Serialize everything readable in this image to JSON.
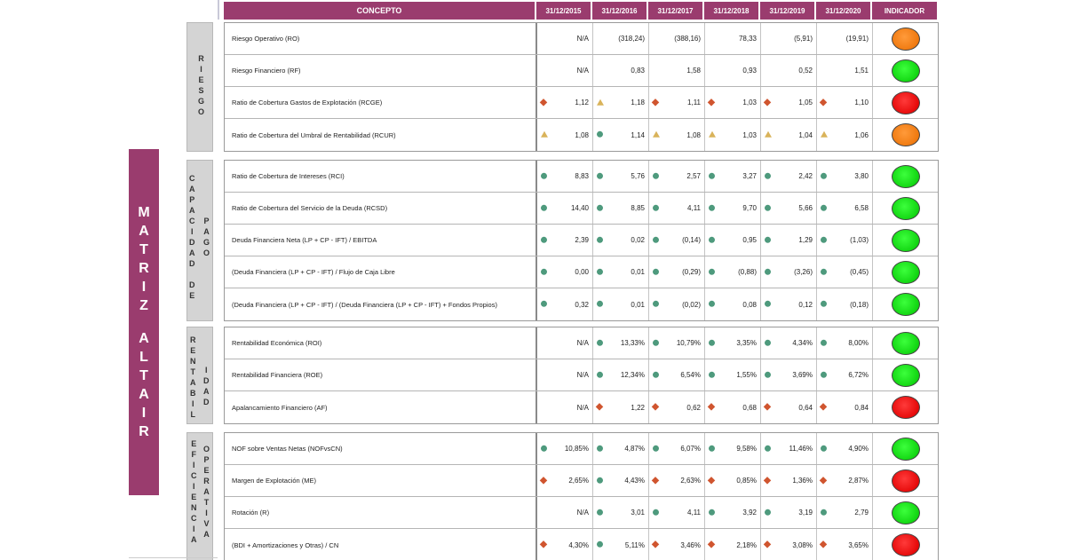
{
  "header": {
    "concept": "CONCEPTO",
    "dates": [
      "31/12/2015",
      "31/12/2016",
      "31/12/2017",
      "31/12/2018",
      "31/12/2019",
      "31/12/2020"
    ],
    "indicator": "INDICADOR"
  },
  "matrix_label": [
    "M",
    "A",
    "T",
    "R",
    "I",
    "Z",
    "",
    "A",
    "L",
    "T",
    "A",
    "I",
    "R"
  ],
  "sections": [
    {
      "label_cols": [
        [
          "R",
          "I",
          "E",
          "S",
          "G",
          "O"
        ]
      ],
      "rows": [
        {
          "concept": "Riesgo Operativo (RO)",
          "values": [
            "N/A",
            "(318,24)",
            "(388,16)",
            "78,33",
            "(5,91)",
            "(19,91)"
          ],
          "marks": [
            "",
            "",
            "",
            "",
            "",
            ""
          ],
          "indicator": "orange"
        },
        {
          "concept": "Riesgo Financiero (RF)",
          "values": [
            "N/A",
            "0,83",
            "1,58",
            "0,93",
            "0,52",
            "1,51"
          ],
          "marks": [
            "",
            "",
            "",
            "",
            "",
            ""
          ],
          "indicator": "green"
        },
        {
          "concept": "Ratio de Cobertura Gastos de Explotación (RCGE)",
          "values": [
            "1,12",
            "1,18",
            "1,11",
            "1,03",
            "1,05",
            "1,10"
          ],
          "marks": [
            "dia",
            "tri",
            "dia",
            "dia",
            "dia",
            "dia"
          ],
          "indicator": "red"
        },
        {
          "concept": "Ratio de Cobertura del Umbral de Rentabilidad (RCUR)",
          "values": [
            "1,08",
            "1,14",
            "1,08",
            "1,03",
            "1,04",
            "1,06"
          ],
          "marks": [
            "tri",
            "dot",
            "tri",
            "tri",
            "tri",
            "tri"
          ],
          "indicator": "orange"
        }
      ]
    },
    {
      "label_cols": [
        [
          "C",
          "A",
          "P",
          "A",
          "C",
          "I",
          "D",
          "A",
          "D",
          "",
          "D",
          "E"
        ],
        [
          "P",
          "A",
          "G",
          "O"
        ]
      ],
      "rows": [
        {
          "concept": "Ratio de Cobertura de Intereses (RCI)",
          "values": [
            "8,83",
            "5,76",
            "2,57",
            "3,27",
            "2,42",
            "3,80"
          ],
          "marks": [
            "dot",
            "dot",
            "dot",
            "dot",
            "dot",
            "dot"
          ],
          "indicator": "green"
        },
        {
          "concept": "Ratio de Cobertura del Servicio de la Deuda (RCSD)",
          "values": [
            "14,40",
            "8,85",
            "4,11",
            "9,70",
            "5,66",
            "6,58"
          ],
          "marks": [
            "dot",
            "dot",
            "dot",
            "dot",
            "dot",
            "dot"
          ],
          "indicator": "green"
        },
        {
          "concept": "Deuda Financiera Neta (LP + CP - IFT) / EBITDA",
          "values": [
            "2,39",
            "0,02",
            "(0,14)",
            "0,95",
            "1,29",
            "(1,03)"
          ],
          "marks": [
            "dot",
            "dot",
            "dot",
            "dot",
            "dot",
            "dot"
          ],
          "indicator": "green"
        },
        {
          "concept": "(Deuda Financiera (LP + CP - IFT) / Flujo de Caja Libre",
          "values": [
            "0,00",
            "0,01",
            "(0,29)",
            "(0,88)",
            "(3,26)",
            "(0,45)"
          ],
          "marks": [
            "dot",
            "dot",
            "dot",
            "dot",
            "dot",
            "dot"
          ],
          "indicator": "green"
        },
        {
          "concept": "(Deuda Financiera (LP + CP - IFT) / (Deuda Financiera (LP + CP - IFT) + Fondos Propios)",
          "values": [
            "0,32",
            "0,01",
            "(0,02)",
            "0,08",
            "0,12",
            "(0,18)"
          ],
          "marks": [
            "dot",
            "dot",
            "dot",
            "dot",
            "dot",
            "dot"
          ],
          "indicator": "green"
        }
      ]
    },
    {
      "label_cols": [
        [
          "R",
          "E",
          "N",
          "T",
          "A",
          "B",
          "I",
          "L"
        ],
        [
          "I",
          "D",
          "A",
          "D"
        ]
      ],
      "rows": [
        {
          "concept": "Rentabilidad Económica (ROI)",
          "values": [
            "N/A",
            "13,33%",
            "10,79%",
            "3,35%",
            "4,34%",
            "8,00%"
          ],
          "marks": [
            "",
            "dot",
            "dot",
            "dot",
            "dot",
            "dot"
          ],
          "indicator": "green"
        },
        {
          "concept": "Rentabilidad Financiera (ROE)",
          "values": [
            "N/A",
            "12,34%",
            "6,54%",
            "1,55%",
            "3,69%",
            "6,72%"
          ],
          "marks": [
            "",
            "dot",
            "dot",
            "dot",
            "dot",
            "dot"
          ],
          "indicator": "green"
        },
        {
          "concept": "Apalancamiento Financiero (AF)",
          "values": [
            "N/A",
            "1,22",
            "0,62",
            "0,68",
            "0,64",
            "0,84"
          ],
          "marks": [
            "",
            "dia",
            "dia",
            "dia",
            "dia",
            "dia"
          ],
          "indicator": "red"
        }
      ]
    },
    {
      "label_cols": [
        [
          "E",
          "F",
          "I",
          "C",
          "I",
          "E",
          "N",
          "C",
          "I",
          "A"
        ],
        [
          "O",
          "P",
          "E",
          "R",
          "A",
          "T",
          "I",
          "V",
          "A"
        ]
      ],
      "rows": [
        {
          "concept": "NOF sobre Ventas Netas (NOFvsCN)",
          "values": [
            "10,85%",
            "4,87%",
            "6,07%",
            "9,58%",
            "11,46%",
            "4,90%"
          ],
          "marks": [
            "dot",
            "dot",
            "dot",
            "dot",
            "dot",
            "dot"
          ],
          "indicator": "green"
        },
        {
          "concept": "Margen de Explotación (ME)",
          "values": [
            "2,65%",
            "4,43%",
            "2,63%",
            "0,85%",
            "1,36%",
            "2,87%"
          ],
          "marks": [
            "dia",
            "dot",
            "dia",
            "dia",
            "dia",
            "dia"
          ],
          "indicator": "red"
        },
        {
          "concept": "Rotación (R)",
          "values": [
            "N/A",
            "3,01",
            "4,11",
            "3,92",
            "3,19",
            "2,79"
          ],
          "marks": [
            "",
            "dot",
            "dot",
            "dot",
            "dot",
            "dot"
          ],
          "indicator": "green"
        },
        {
          "concept": "(BDI + Amortizaciones y Otras) / CN",
          "values": [
            "4,30%",
            "5,11%",
            "3,46%",
            "2,18%",
            "3,08%",
            "3,65%"
          ],
          "marks": [
            "dia",
            "dot",
            "dia",
            "dia",
            "dia",
            "dia"
          ],
          "indicator": "red"
        }
      ]
    }
  ]
}
